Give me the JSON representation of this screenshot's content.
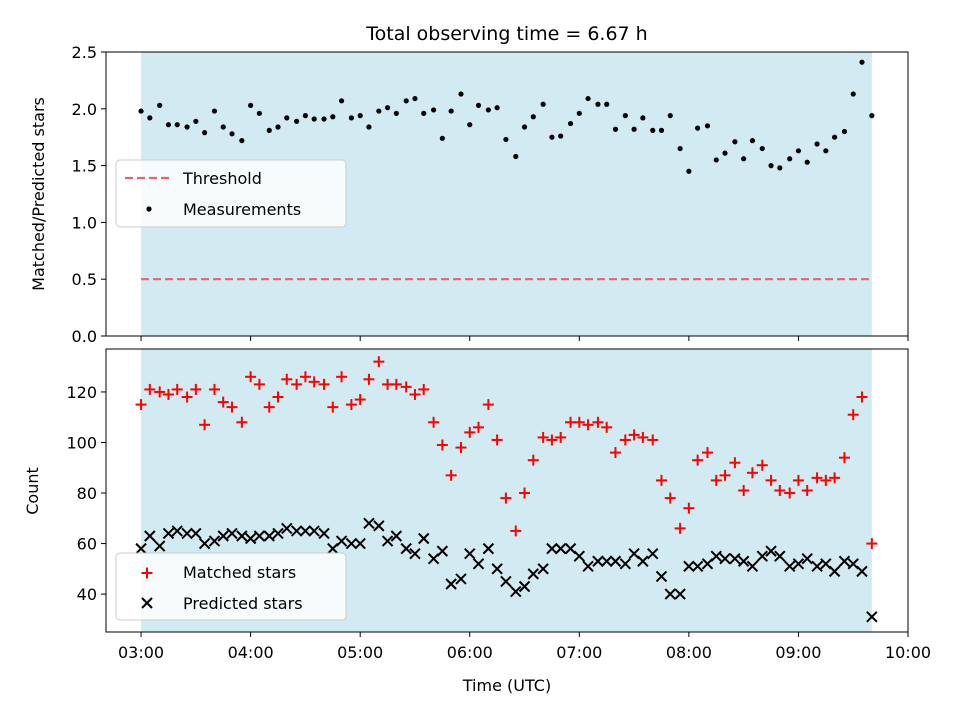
{
  "chart_data": [
    {
      "type": "scatter",
      "title": "Total observing time = 6.67 h",
      "xlabel": "",
      "ylabel": "Matched/Predicted stars",
      "ylim": [
        0,
        2.5
      ],
      "yticks": [
        "0.0",
        "0.5",
        "1.0",
        "1.5",
        "2.0",
        "2.5"
      ],
      "x_unit": "hours UTC",
      "xlim": [
        2.68,
        10.0
      ],
      "shaded_region": [
        3.0,
        9.67
      ],
      "colors": {
        "shade": "#add8e6",
        "threshold": "#e8636b",
        "measurements": "#000000"
      },
      "legend_position": "center-left",
      "legend": [
        "Threshold",
        "Measurements"
      ],
      "threshold": {
        "name": "Threshold",
        "value": 0.5
      },
      "series": [
        {
          "name": "Measurements",
          "x": [
            3.0,
            3.08,
            3.17,
            3.25,
            3.33,
            3.42,
            3.5,
            3.58,
            3.67,
            3.75,
            3.83,
            3.92,
            4.0,
            4.08,
            4.17,
            4.25,
            4.33,
            4.42,
            4.5,
            4.58,
            4.67,
            4.75,
            4.83,
            4.92,
            5.0,
            5.08,
            5.17,
            5.25,
            5.33,
            5.42,
            5.5,
            5.58,
            5.67,
            5.75,
            5.83,
            5.92,
            6.0,
            6.08,
            6.17,
            6.25,
            6.33,
            6.42,
            6.5,
            6.58,
            6.67,
            6.75,
            6.83,
            6.92,
            7.0,
            7.08,
            7.17,
            7.25,
            7.33,
            7.42,
            7.5,
            7.58,
            7.67,
            7.75,
            7.83,
            7.92,
            8.0,
            8.08,
            8.17,
            8.25,
            8.33,
            8.42,
            8.5,
            8.58,
            8.67,
            8.75,
            8.83,
            8.92,
            9.0,
            9.08,
            9.17,
            9.25,
            9.33,
            9.42,
            9.5,
            9.58,
            9.67
          ],
          "y": [
            1.98,
            1.92,
            2.03,
            1.86,
            1.86,
            1.84,
            1.89,
            1.79,
            1.98,
            1.84,
            1.78,
            1.72,
            2.03,
            1.96,
            1.81,
            1.84,
            1.92,
            1.89,
            1.94,
            1.91,
            1.91,
            1.93,
            2.07,
            1.92,
            1.94,
            1.84,
            1.98,
            2.01,
            1.96,
            2.07,
            2.09,
            1.96,
            1.99,
            1.74,
            1.98,
            2.13,
            1.86,
            2.03,
            1.99,
            2.01,
            1.73,
            1.58,
            1.84,
            1.93,
            2.04,
            1.75,
            1.76,
            1.87,
            1.96,
            2.09,
            2.04,
            2.04,
            1.82,
            1.94,
            1.82,
            1.92,
            1.81,
            1.81,
            1.94,
            1.65,
            1.45,
            1.83,
            1.85,
            1.55,
            1.61,
            1.71,
            1.56,
            1.72,
            1.65,
            1.5,
            1.48,
            1.56,
            1.63,
            1.53,
            1.69,
            1.63,
            1.75,
            1.8,
            2.13,
            2.41,
            1.94
          ]
        }
      ]
    },
    {
      "type": "scatter",
      "title": "",
      "xlabel": "Time (UTC)",
      "ylabel": "Count",
      "ylim": [
        25,
        137
      ],
      "yticks": [
        "40",
        "60",
        "80",
        "100",
        "120"
      ],
      "ytick_values": [
        40,
        60,
        80,
        100,
        120
      ],
      "xticks": [
        "03:00",
        "04:00",
        "05:00",
        "06:00",
        "07:00",
        "08:00",
        "09:00",
        "10:00"
      ],
      "xtick_values": [
        3,
        4,
        5,
        6,
        7,
        8,
        9,
        10
      ],
      "x_unit": "hours UTC",
      "xlim": [
        2.68,
        10.0
      ],
      "shaded_region": [
        3.0,
        9.67
      ],
      "colors": {
        "shade": "#add8e6",
        "matched": "#ff0000",
        "predicted": "#000000"
      },
      "legend_position": "lower-left",
      "legend": [
        "Matched stars",
        "Predicted stars"
      ],
      "series": [
        {
          "name": "Matched stars",
          "marker": "plus",
          "x": [
            3.0,
            3.08,
            3.17,
            3.25,
            3.33,
            3.42,
            3.5,
            3.58,
            3.67,
            3.75,
            3.83,
            3.92,
            4.0,
            4.08,
            4.17,
            4.25,
            4.33,
            4.42,
            4.5,
            4.58,
            4.67,
            4.75,
            4.83,
            4.92,
            5.0,
            5.08,
            5.17,
            5.25,
            5.33,
            5.42,
            5.5,
            5.58,
            5.67,
            5.75,
            5.83,
            5.92,
            6.0,
            6.08,
            6.17,
            6.25,
            6.33,
            6.42,
            6.5,
            6.58,
            6.67,
            6.75,
            6.83,
            6.92,
            7.0,
            7.08,
            7.17,
            7.25,
            7.33,
            7.42,
            7.5,
            7.58,
            7.67,
            7.75,
            7.83,
            7.92,
            8.0,
            8.08,
            8.17,
            8.25,
            8.33,
            8.42,
            8.5,
            8.58,
            8.67,
            8.75,
            8.83,
            8.92,
            9.0,
            9.08,
            9.17,
            9.25,
            9.33,
            9.42,
            9.5,
            9.58,
            9.67
          ],
          "y": [
            115,
            121,
            120,
            119,
            121,
            118,
            121,
            107,
            121,
            116,
            114,
            108,
            126,
            123,
            114,
            118,
            125,
            123,
            126,
            124,
            123,
            114,
            126,
            115,
            117,
            125,
            132,
            123,
            123,
            122,
            119,
            121,
            108,
            99,
            87,
            98,
            104,
            106,
            115,
            101,
            78,
            65,
            80,
            93,
            102,
            101,
            102,
            108,
            108,
            107,
            108,
            106,
            96,
            101,
            103,
            102,
            101,
            85,
            78,
            66,
            74,
            93,
            96,
            85,
            87,
            92,
            81,
            88,
            91,
            85,
            81,
            80,
            85,
            81,
            86,
            85,
            86,
            94,
            111,
            118,
            60
          ]
        },
        {
          "name": "Predicted stars",
          "marker": "x",
          "x": [
            3.0,
            3.08,
            3.17,
            3.25,
            3.33,
            3.42,
            3.5,
            3.58,
            3.67,
            3.75,
            3.83,
            3.92,
            4.0,
            4.08,
            4.17,
            4.25,
            4.33,
            4.42,
            4.5,
            4.58,
            4.67,
            4.75,
            4.83,
            4.92,
            5.0,
            5.08,
            5.17,
            5.25,
            5.33,
            5.42,
            5.5,
            5.58,
            5.67,
            5.75,
            5.83,
            5.92,
            6.0,
            6.08,
            6.17,
            6.25,
            6.33,
            6.42,
            6.5,
            6.58,
            6.67,
            6.75,
            6.83,
            6.92,
            7.0,
            7.08,
            7.17,
            7.25,
            7.33,
            7.42,
            7.5,
            7.58,
            7.67,
            7.75,
            7.83,
            7.92,
            8.0,
            8.08,
            8.17,
            8.25,
            8.33,
            8.42,
            8.5,
            8.58,
            8.67,
            8.75,
            8.83,
            8.92,
            9.0,
            9.08,
            9.17,
            9.25,
            9.33,
            9.42,
            9.5,
            9.58,
            9.67
          ],
          "y": [
            58,
            63,
            59,
            64,
            65,
            64,
            64,
            60,
            61,
            63,
            64,
            63,
            62,
            63,
            63,
            64,
            66,
            65,
            65,
            65,
            64,
            58,
            61,
            60,
            60,
            68,
            67,
            61,
            63,
            58,
            56,
            62,
            54,
            57,
            44,
            46,
            56,
            52,
            58,
            50,
            45,
            41,
            43,
            48,
            50,
            58,
            58,
            58,
            55,
            51,
            53,
            53,
            53,
            52,
            56,
            53,
            56,
            47,
            40,
            40,
            51,
            51,
            52,
            55,
            54,
            54,
            53,
            51,
            55,
            57,
            55,
            51,
            52,
            54,
            51,
            52,
            49,
            53,
            52,
            49,
            31
          ]
        }
      ]
    }
  ]
}
